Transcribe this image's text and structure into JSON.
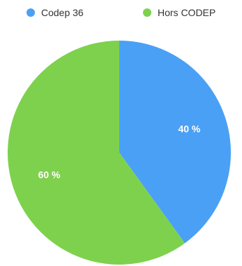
{
  "chart_data": {
    "type": "pie",
    "slices": [
      {
        "name": "Codep 36",
        "value": 40,
        "label": "40 %",
        "color": "#4AA0F5"
      },
      {
        "name": "Hors CODEP",
        "value": 60,
        "label": "60 %",
        "color": "#7ED14D"
      }
    ],
    "legend_position": "top",
    "start_angle": "top",
    "direction": "clockwise"
  }
}
